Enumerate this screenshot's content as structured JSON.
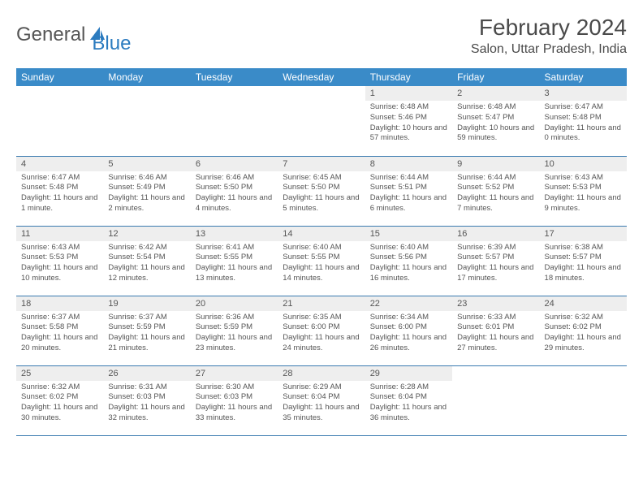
{
  "logo": {
    "part1": "General",
    "part2": "Blue"
  },
  "title": "February 2024",
  "location": "Salon, Uttar Pradesh, India",
  "header_bg": "#3a8bc8",
  "row_border": "#3a7bb0",
  "daynum_bg": "#eeeeee",
  "text_color": "#555555",
  "accent_color": "#2b7bbf",
  "day_names": [
    "Sunday",
    "Monday",
    "Tuesday",
    "Wednesday",
    "Thursday",
    "Friday",
    "Saturday"
  ],
  "weeks": [
    [
      null,
      null,
      null,
      null,
      {
        "n": "1",
        "sr": "6:48 AM",
        "ss": "5:46 PM",
        "dl": "10 hours and 57 minutes."
      },
      {
        "n": "2",
        "sr": "6:48 AM",
        "ss": "5:47 PM",
        "dl": "10 hours and 59 minutes."
      },
      {
        "n": "3",
        "sr": "6:47 AM",
        "ss": "5:48 PM",
        "dl": "11 hours and 0 minutes."
      }
    ],
    [
      {
        "n": "4",
        "sr": "6:47 AM",
        "ss": "5:48 PM",
        "dl": "11 hours and 1 minute."
      },
      {
        "n": "5",
        "sr": "6:46 AM",
        "ss": "5:49 PM",
        "dl": "11 hours and 2 minutes."
      },
      {
        "n": "6",
        "sr": "6:46 AM",
        "ss": "5:50 PM",
        "dl": "11 hours and 4 minutes."
      },
      {
        "n": "7",
        "sr": "6:45 AM",
        "ss": "5:50 PM",
        "dl": "11 hours and 5 minutes."
      },
      {
        "n": "8",
        "sr": "6:44 AM",
        "ss": "5:51 PM",
        "dl": "11 hours and 6 minutes."
      },
      {
        "n": "9",
        "sr": "6:44 AM",
        "ss": "5:52 PM",
        "dl": "11 hours and 7 minutes."
      },
      {
        "n": "10",
        "sr": "6:43 AM",
        "ss": "5:53 PM",
        "dl": "11 hours and 9 minutes."
      }
    ],
    [
      {
        "n": "11",
        "sr": "6:43 AM",
        "ss": "5:53 PM",
        "dl": "11 hours and 10 minutes."
      },
      {
        "n": "12",
        "sr": "6:42 AM",
        "ss": "5:54 PM",
        "dl": "11 hours and 12 minutes."
      },
      {
        "n": "13",
        "sr": "6:41 AM",
        "ss": "5:55 PM",
        "dl": "11 hours and 13 minutes."
      },
      {
        "n": "14",
        "sr": "6:40 AM",
        "ss": "5:55 PM",
        "dl": "11 hours and 14 minutes."
      },
      {
        "n": "15",
        "sr": "6:40 AM",
        "ss": "5:56 PM",
        "dl": "11 hours and 16 minutes."
      },
      {
        "n": "16",
        "sr": "6:39 AM",
        "ss": "5:57 PM",
        "dl": "11 hours and 17 minutes."
      },
      {
        "n": "17",
        "sr": "6:38 AM",
        "ss": "5:57 PM",
        "dl": "11 hours and 18 minutes."
      }
    ],
    [
      {
        "n": "18",
        "sr": "6:37 AM",
        "ss": "5:58 PM",
        "dl": "11 hours and 20 minutes."
      },
      {
        "n": "19",
        "sr": "6:37 AM",
        "ss": "5:59 PM",
        "dl": "11 hours and 21 minutes."
      },
      {
        "n": "20",
        "sr": "6:36 AM",
        "ss": "5:59 PM",
        "dl": "11 hours and 23 minutes."
      },
      {
        "n": "21",
        "sr": "6:35 AM",
        "ss": "6:00 PM",
        "dl": "11 hours and 24 minutes."
      },
      {
        "n": "22",
        "sr": "6:34 AM",
        "ss": "6:00 PM",
        "dl": "11 hours and 26 minutes."
      },
      {
        "n": "23",
        "sr": "6:33 AM",
        "ss": "6:01 PM",
        "dl": "11 hours and 27 minutes."
      },
      {
        "n": "24",
        "sr": "6:32 AM",
        "ss": "6:02 PM",
        "dl": "11 hours and 29 minutes."
      }
    ],
    [
      {
        "n": "25",
        "sr": "6:32 AM",
        "ss": "6:02 PM",
        "dl": "11 hours and 30 minutes."
      },
      {
        "n": "26",
        "sr": "6:31 AM",
        "ss": "6:03 PM",
        "dl": "11 hours and 32 minutes."
      },
      {
        "n": "27",
        "sr": "6:30 AM",
        "ss": "6:03 PM",
        "dl": "11 hours and 33 minutes."
      },
      {
        "n": "28",
        "sr": "6:29 AM",
        "ss": "6:04 PM",
        "dl": "11 hours and 35 minutes."
      },
      {
        "n": "29",
        "sr": "6:28 AM",
        "ss": "6:04 PM",
        "dl": "11 hours and 36 minutes."
      },
      null,
      null
    ]
  ]
}
